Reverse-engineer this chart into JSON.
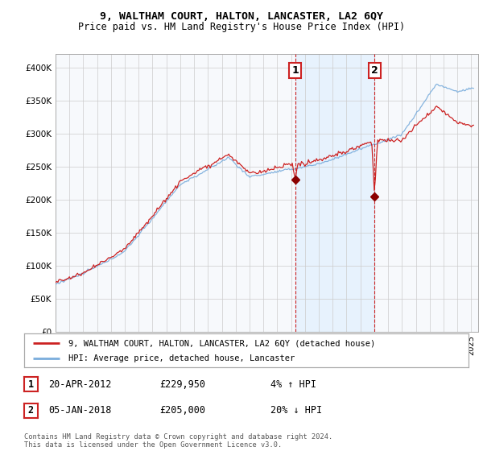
{
  "title": "9, WALTHAM COURT, HALTON, LANCASTER, LA2 6QY",
  "subtitle": "Price paid vs. HM Land Registry's House Price Index (HPI)",
  "ylim": [
    0,
    420000
  ],
  "yticks": [
    0,
    50000,
    100000,
    150000,
    200000,
    250000,
    300000,
    350000,
    400000
  ],
  "ytick_labels": [
    "£0",
    "£50K",
    "£100K",
    "£150K",
    "£200K",
    "£250K",
    "£300K",
    "£350K",
    "£400K"
  ],
  "xlim_start": 1995.0,
  "xlim_end": 2025.5,
  "marker1_x": 2012.3,
  "marker1_y": 229950,
  "marker2_x": 2018.02,
  "marker2_y": 205000,
  "legend_line1": "9, WALTHAM COURT, HALTON, LANCASTER, LA2 6QY (detached house)",
  "legend_line2": "HPI: Average price, detached house, Lancaster",
  "table_row1": [
    "1",
    "20-APR-2012",
    "£229,950",
    "4% ↑ HPI"
  ],
  "table_row2": [
    "2",
    "05-JAN-2018",
    "£205,000",
    "20% ↓ HPI"
  ],
  "footer": "Contains HM Land Registry data © Crown copyright and database right 2024.\nThis data is licensed under the Open Government Licence v3.0.",
  "hpi_color": "#7aaddc",
  "property_color": "#cc2222",
  "shade_color": "#ddeeff",
  "background_color": "#ffffff",
  "grid_color": "#cccccc",
  "shade_between_x1": 2012.3,
  "shade_between_x2": 2018.02,
  "chart_bg": "#f7f9fc"
}
